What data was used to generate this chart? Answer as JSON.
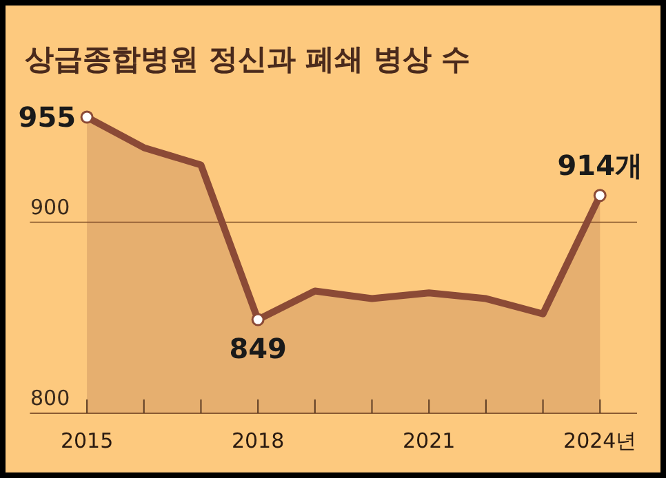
{
  "chart_data": {
    "type": "area",
    "title": "상급종합병원 정신과 폐쇄 병상 수",
    "x": [
      2015,
      2016,
      2017,
      2018,
      2019,
      2020,
      2021,
      2022,
      2023,
      2024
    ],
    "series": [
      {
        "color": "#8b4a36",
        "values": [
          955,
          939,
          930,
          849,
          864,
          860,
          863,
          860,
          852,
          914
        ],
        "value_labels": [
          "955",
          null,
          null,
          "849",
          null,
          null,
          null,
          null,
          null,
          "914개"
        ]
      }
    ],
    "xlim": [
      2014,
      2024.65
    ],
    "ylim": [
      800,
      1013
    ],
    "ref_lines": [
      {
        "axis": "y",
        "value": 900,
        "color": "#9a6a3a"
      }
    ],
    "xticks": [
      {
        "value": 2015,
        "label": "2015"
      },
      {
        "value": 2016,
        "label": null
      },
      {
        "value": 2017,
        "label": null
      },
      {
        "value": 2018,
        "label": "2018"
      },
      {
        "value": 2019,
        "label": null
      },
      {
        "value": 2020,
        "label": null
      },
      {
        "value": 2021,
        "label": "2021"
      },
      {
        "value": 2022,
        "label": null
      },
      {
        "value": 2023,
        "label": null
      },
      {
        "value": 2024,
        "label": "2024년"
      }
    ],
    "yticks": [
      800,
      900
    ]
  }
}
